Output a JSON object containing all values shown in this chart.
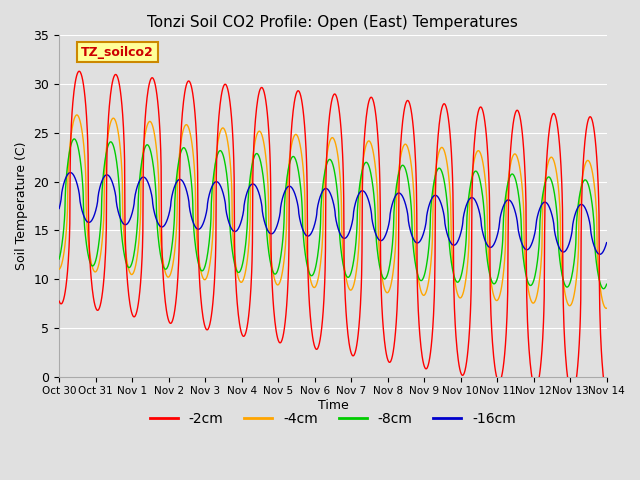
{
  "title": "Tonzi Soil CO2 Profile: Open (East) Temperatures",
  "ylabel": "Soil Temperature (C)",
  "xlabel": "Time",
  "legend_label": "TZ_soilco2",
  "series_labels": [
    "-2cm",
    "-4cm",
    "-8cm",
    "-16cm"
  ],
  "series_colors": [
    "#ff0000",
    "#ffa500",
    "#00cc00",
    "#0000cc"
  ],
  "ylim": [
    0,
    35
  ],
  "figsize": [
    6.4,
    4.8
  ],
  "dpi": 100,
  "xtick_labels": [
    "Oct 30",
    "Oct 31",
    "Nov 1",
    "Nov 2",
    "Nov 3",
    "Nov 4",
    "Nov 5",
    "Nov 6",
    "Nov 7",
    "Nov 8",
    "Nov 9",
    "Nov 10",
    "Nov 11",
    "Nov 12",
    "Nov 13",
    "Nov 14"
  ],
  "background_color": "#e0e0e0",
  "grid_color": "#ffffff",
  "legend_box_facecolor": "#ffff99",
  "legend_box_edgecolor": "#cc8800"
}
